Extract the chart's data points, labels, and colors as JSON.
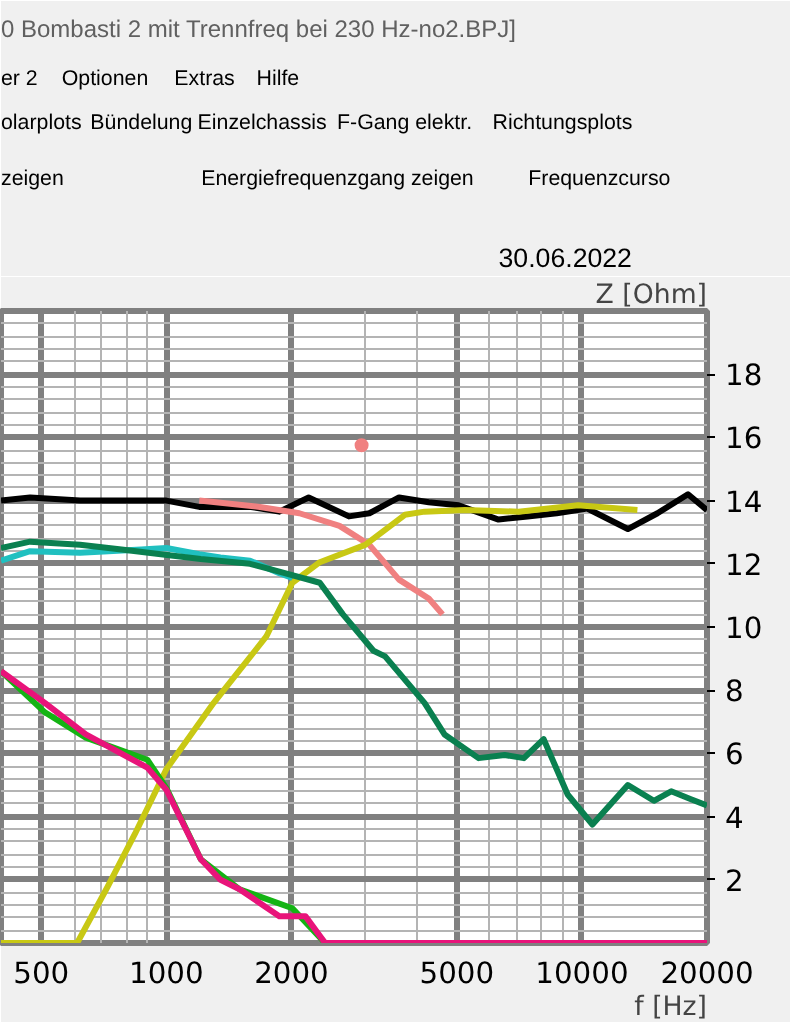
{
  "chart_data": {
    "type": "line",
    "title": "0 Bombasti 2 mit Trennfreq bei 230 Hz-no2.BPJ]",
    "xlabel": "f [Hz]",
    "ylabel": "Z [Ohm]",
    "annotations": [
      "er 2",
      "Optionen",
      "Extras",
      "Hilfe",
      "olarplots",
      "Bündelung",
      "Einzelchassis",
      "F-Gang elektr.",
      "Richtungsplots",
      "zeigen",
      "Energiefrequenzgang zeigen",
      "Frequenzcurso",
      "30.06.2022"
    ],
    "log": "x",
    "xlim": [
      400,
      20000
    ],
    "xticks": [
      500,
      1000,
      2000,
      5000,
      10000,
      20000
    ],
    "ylim": [
      0,
      20
    ],
    "yticks": [
      2,
      4,
      6,
      8,
      10,
      12,
      14,
      16,
      18
    ],
    "grid": true,
    "line_style": "solid",
    "series": [
      {
        "color": "#000000",
        "x": [
          400,
          470,
          620,
          870,
          1000,
          1200,
          1600,
          1870,
          2200,
          2750,
          3080,
          3630,
          4280,
          5050,
          6300,
          7400,
          8700,
          10300,
          12900,
          15200,
          18000,
          20000
        ],
        "values": [
          14.0,
          14.1,
          14.0,
          14.0,
          14.0,
          13.8,
          13.8,
          13.65,
          14.1,
          13.5,
          13.6,
          14.1,
          13.95,
          13.85,
          13.4,
          13.5,
          13.6,
          13.75,
          13.1,
          13.6,
          14.2,
          13.7
        ]
      },
      {
        "color": "#f08080",
        "x": [
          1200,
          1680,
          2090,
          2610,
          3080,
          3630,
          4280,
          4620
        ],
        "values": [
          14.0,
          13.8,
          13.6,
          13.2,
          12.6,
          11.5,
          10.9,
          10.4
        ]
      },
      {
        "color": "#f08080",
        "type": "scatter",
        "x": [
          2950
        ],
        "values": [
          15.75
        ]
      },
      {
        "color": "#c8c814",
        "x": [
          400,
          610,
          720,
          840,
          1000,
          1300,
          1740,
          2010,
          2340,
          3010,
          3750,
          4180,
          5230,
          7040,
          9790,
          13600
        ],
        "values": [
          0,
          0,
          1.75,
          3.45,
          5.5,
          7.6,
          9.7,
          11.4,
          12.05,
          12.6,
          13.55,
          13.65,
          13.7,
          13.65,
          13.85,
          13.7
        ]
      },
      {
        "color": "#20c0c0",
        "x": [
          400,
          470,
          620,
          870,
          1000,
          1200,
          1350,
          1590,
          1870,
          2010
        ],
        "values": [
          12.1,
          12.4,
          12.35,
          12.45,
          12.5,
          12.3,
          12.2,
          12.1,
          11.7,
          11.55
        ]
      },
      {
        "color": "#14b414",
        "x": [
          400,
          510,
          640,
          900,
          1000,
          1210,
          1500,
          2010,
          2410
        ],
        "values": [
          8.6,
          7.3,
          6.5,
          5.8,
          4.9,
          2.65,
          1.7,
          1.1,
          0
        ]
      },
      {
        "color": "#0a8050",
        "x": [
          400,
          470,
          620,
          780,
          970,
          1210,
          1590,
          1870,
          2340,
          2660,
          3150,
          3360,
          4180,
          4670,
          5640,
          6520,
          7250,
          8090,
          9240,
          10600,
          12900,
          14900,
          16400,
          18300,
          20000
        ],
        "values": [
          12.5,
          12.7,
          12.6,
          12.45,
          12.3,
          12.15,
          12.0,
          11.75,
          11.4,
          10.4,
          9.25,
          9.07,
          7.6,
          6.6,
          5.85,
          5.95,
          5.85,
          6.45,
          4.7,
          3.75,
          5.0,
          4.5,
          4.8,
          4.55,
          4.35
        ]
      },
      {
        "color": "#e8147a",
        "x": [
          400,
          510,
          640,
          900,
          1000,
          1210,
          1350,
          1500,
          1870,
          2160,
          2410,
          20000
        ],
        "values": [
          8.6,
          7.6,
          6.6,
          5.55,
          4.85,
          2.65,
          2.0,
          1.7,
          0.85,
          0.85,
          0,
          0
        ]
      }
    ]
  }
}
